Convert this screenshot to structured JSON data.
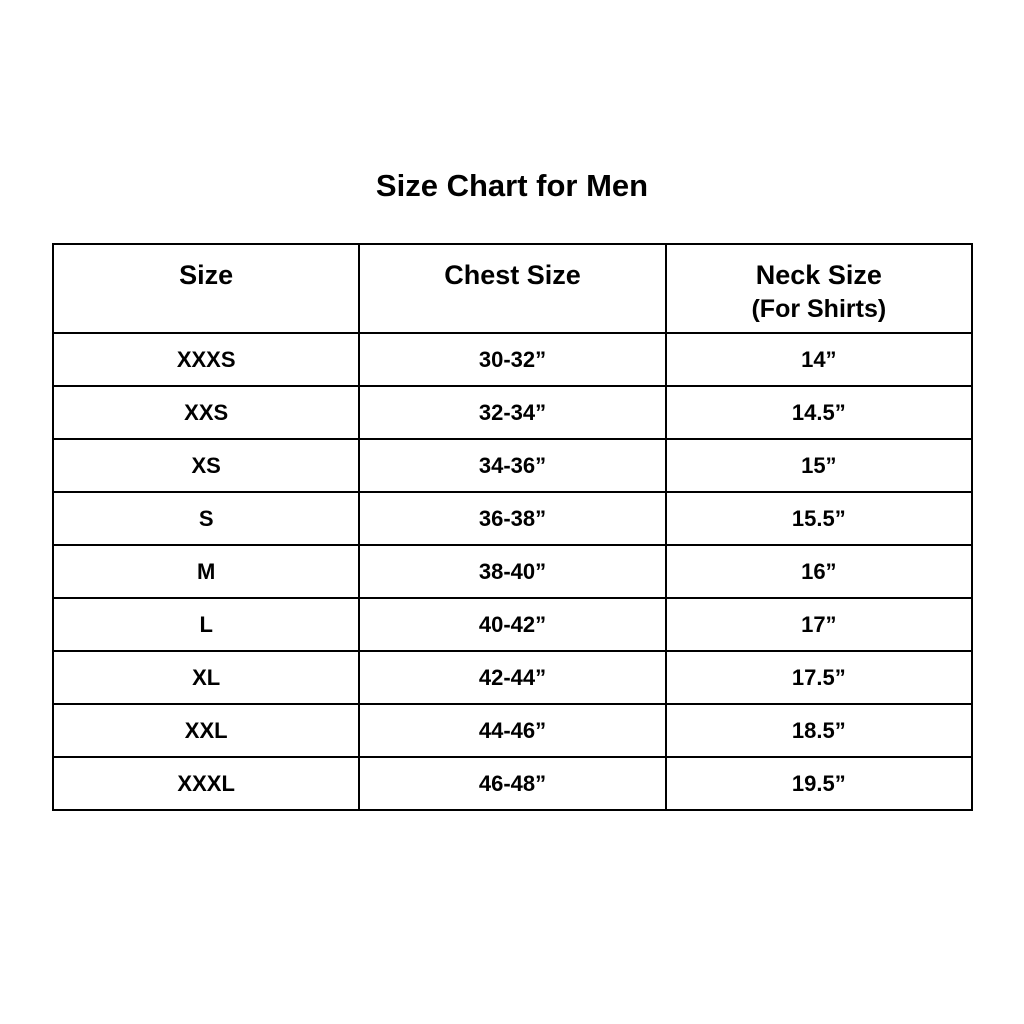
{
  "title": "Size Chart for Men",
  "headers": {
    "size": "Size",
    "chest": "Chest Size",
    "neck": "Neck Size",
    "neck_sub": "(For Shirts)"
  },
  "rows": [
    {
      "size": "XXXS",
      "chest": "30-32”",
      "neck": "14”"
    },
    {
      "size": "XXS",
      "chest": "32-34”",
      "neck": "14.5”"
    },
    {
      "size": "XS",
      "chest": "34-36”",
      "neck": "15”"
    },
    {
      "size": "S",
      "chest": "36-38”",
      "neck": "15.5”"
    },
    {
      "size": "M",
      "chest": "38-40”",
      "neck": "16”"
    },
    {
      "size": "L",
      "chest": "40-42”",
      "neck": "17”"
    },
    {
      "size": "XL",
      "chest": "42-44”",
      "neck": "17.5”"
    },
    {
      "size": "XXL",
      "chest": "44-46”",
      "neck": "18.5”"
    },
    {
      "size": "XXXL",
      "chest": "46-48”",
      "neck": "19.5”"
    }
  ]
}
